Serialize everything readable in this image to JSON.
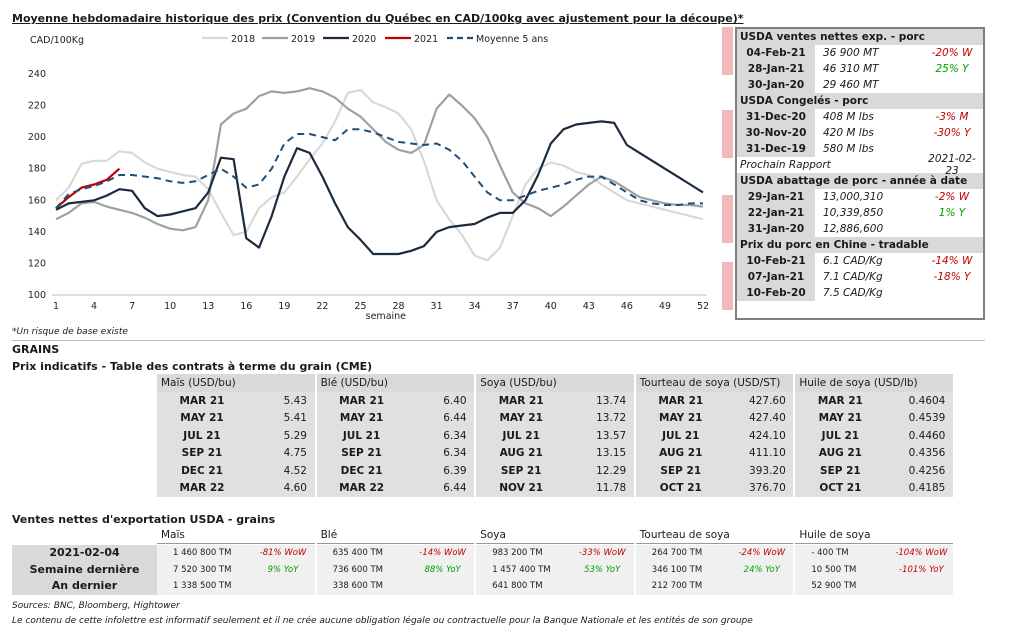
{
  "chart_title": "Moyenne hebdomadaire historique des prix (Convention du Québec en CAD/100kg avec ajustement pour la découpe)*",
  "chart_note": "*Un risque de base existe",
  "colors": {
    "y2018": "#d9d9d9",
    "y2019": "#a0a0a0",
    "y2020": "#1a2b40",
    "y2021": "#c00000",
    "avg5": "#1f4e79",
    "pink": "#f2b9bc"
  },
  "chart_data": {
    "type": "line",
    "ylabel": "CAD/100Kg",
    "xlabel": "semaine",
    "ylim": [
      100,
      240
    ],
    "yticks": [
      100,
      120,
      140,
      160,
      180,
      200,
      220,
      240
    ],
    "xticks": [
      1,
      4,
      7,
      10,
      13,
      16,
      19,
      22,
      25,
      28,
      31,
      34,
      37,
      40,
      43,
      46,
      49,
      52
    ],
    "grid": false,
    "legend": "top",
    "series": [
      {
        "name": "2018",
        "color": "#d9d9d9",
        "dash": false,
        "values": [
          160,
          168,
          183,
          185,
          185,
          191,
          190,
          184,
          180,
          178,
          176,
          175,
          167,
          152,
          138,
          140,
          155,
          162,
          165,
          175,
          186,
          196,
          210,
          228,
          230,
          222,
          219,
          215,
          205,
          185,
          160,
          148,
          138,
          125,
          122,
          130,
          150,
          170,
          180,
          184,
          182,
          178,
          176,
          170,
          165,
          160,
          158,
          156,
          154,
          152,
          150,
          148
        ]
      },
      {
        "name": "2019",
        "color": "#a0a0a0",
        "dash": false,
        "values": [
          148,
          152,
          158,
          159,
          156,
          154,
          152,
          149,
          145,
          142,
          141,
          143,
          160,
          208,
          215,
          218,
          226,
          229,
          228,
          229,
          231,
          229,
          225,
          218,
          213,
          205,
          197,
          192,
          190,
          195,
          218,
          227,
          220,
          212,
          200,
          182,
          165,
          158,
          155,
          150,
          156,
          163,
          170,
          175,
          172,
          167,
          162,
          160,
          158,
          157,
          157,
          156
        ]
      },
      {
        "name": "2020",
        "color": "#1a2b40",
        "dash": false,
        "values": [
          154,
          158,
          159,
          160,
          163,
          167,
          166,
          155,
          150,
          151,
          153,
          155,
          165,
          187,
          186,
          136,
          130,
          150,
          175,
          193,
          190,
          175,
          158,
          143,
          135,
          126,
          126,
          126,
          128,
          131,
          140,
          143,
          144,
          145,
          149,
          152,
          152,
          160,
          176,
          196,
          205,
          208,
          209,
          210,
          209,
          195,
          190,
          185,
          180,
          175,
          170,
          165
        ]
      },
      {
        "name": "2021",
        "color": "#c00000",
        "dash": false,
        "values": [
          155,
          162,
          168,
          170,
          173,
          180
        ]
      },
      {
        "name": "Moyenne 5 ans",
        "color": "#1f4e79",
        "dash": true,
        "values": [
          155,
          164,
          167,
          169,
          172,
          176,
          176,
          175,
          174,
          172,
          171,
          172,
          176,
          180,
          175,
          168,
          170,
          180,
          196,
          202,
          202,
          200,
          198,
          205,
          205,
          203,
          200,
          197,
          196,
          195,
          196,
          192,
          185,
          175,
          165,
          160,
          160,
          163,
          166,
          168,
          170,
          173,
          175,
          175,
          170,
          165,
          160,
          158,
          157,
          157,
          158,
          158
        ]
      }
    ]
  },
  "usda_box": {
    "sections": [
      {
        "title": "USDA ventes nettes exp. - porc",
        "rows": [
          {
            "date": "04-Feb-21",
            "value": "36 900  MT",
            "change": "-20% W",
            "tone": "red"
          },
          {
            "date": "28-Jan-21",
            "value": "46 310  MT",
            "change": "25% Y",
            "tone": "green"
          },
          {
            "date": "30-Jan-20",
            "value": "29 460  MT",
            "change": "",
            "tone": ""
          }
        ]
      },
      {
        "title": "USDA Congelés - porc",
        "rows": [
          {
            "date": "31-Dec-20",
            "value": "408 M lbs",
            "change": "-3% M",
            "tone": "red"
          },
          {
            "date": "30-Nov-20",
            "value": "420 M lbs",
            "change": "-30% Y",
            "tone": "red"
          },
          {
            "date": "31-Dec-19",
            "value": "580 M lbs",
            "change": "",
            "tone": ""
          }
        ],
        "prochain": {
          "label": "Prochain Rapport",
          "date": "2021-02-23"
        }
      },
      {
        "title": "USDA abattage de porc - année à date",
        "rows": [
          {
            "date": "29-Jan-21",
            "value": "13,000,310",
            "change": "-2% W",
            "tone": "red"
          },
          {
            "date": "22-Jan-21",
            "value": "10,339,850",
            "change": "1% Y",
            "tone": "green"
          },
          {
            "date": "31-Jan-20",
            "value": "12,886,600",
            "change": "",
            "tone": ""
          }
        ]
      },
      {
        "title": "Prix du porc en Chine - tradable",
        "rows": [
          {
            "date": "10-Feb-21",
            "value": "6.1 CAD/Kg",
            "change": "-14% W",
            "tone": "red"
          },
          {
            "date": "07-Jan-21",
            "value": "7.1 CAD/Kg",
            "change": "-18% Y",
            "tone": "red"
          },
          {
            "date": "10-Feb-20",
            "value": "7.5 CAD/Kg",
            "change": "",
            "tone": ""
          }
        ]
      }
    ]
  },
  "grains": {
    "section_title": "GRAINS",
    "subtitle": "Prix indicatifs - Table des contrats à terme du grain (CME)",
    "columns": [
      {
        "name": "Maïs (USD/bu)",
        "rows": [
          [
            "MAR 21",
            "5.43"
          ],
          [
            "MAY 21",
            "5.41"
          ],
          [
            "JUL 21",
            "5.29"
          ],
          [
            "SEP 21",
            "4.75"
          ],
          [
            "DEC 21",
            "4.52"
          ],
          [
            "MAR 22",
            "4.60"
          ]
        ]
      },
      {
        "name": "Blé (USD/bu)",
        "rows": [
          [
            "MAR 21",
            "6.40"
          ],
          [
            "MAY 21",
            "6.44"
          ],
          [
            "JUL 21",
            "6.34"
          ],
          [
            "SEP 21",
            "6.34"
          ],
          [
            "DEC 21",
            "6.39"
          ],
          [
            "MAR 22",
            "6.44"
          ]
        ]
      },
      {
        "name": "Soya (USD/bu)",
        "rows": [
          [
            "MAR 21",
            "13.74"
          ],
          [
            "MAY 21",
            "13.72"
          ],
          [
            "JUL 21",
            "13.57"
          ],
          [
            "AUG 21",
            "13.15"
          ],
          [
            "SEP 21",
            "12.29"
          ],
          [
            "NOV 21",
            "11.78"
          ]
        ]
      },
      {
        "name": "Tourteau de soya (USD/ST)",
        "rows": [
          [
            "MAR 21",
            "427.60"
          ],
          [
            "MAY 21",
            "427.40"
          ],
          [
            "JUL 21",
            "424.10"
          ],
          [
            "AUG 21",
            "411.10"
          ],
          [
            "SEP 21",
            "393.20"
          ],
          [
            "OCT 21",
            "376.70"
          ]
        ]
      },
      {
        "name": "Huile de soya (USD/lb)",
        "rows": [
          [
            "MAR 21",
            "0.4604"
          ],
          [
            "MAY 21",
            "0.4539"
          ],
          [
            "JUL 21",
            "0.4460"
          ],
          [
            "AUG 21",
            "0.4356"
          ],
          [
            "SEP 21",
            "0.4256"
          ],
          [
            "OCT 21",
            "0.4185"
          ]
        ]
      }
    ]
  },
  "exports": {
    "title": "Ventes nettes d'exportation USDA - grains",
    "columns": [
      "Maïs",
      "Blé",
      "Soya",
      "Tourteau de soya",
      "Huile de soya"
    ],
    "rows": [
      {
        "label": "2021-02-04",
        "cells": [
          [
            "1 460 800 TM",
            "-81% WoW",
            "red"
          ],
          [
            "635 400 TM",
            "-14% WoW",
            "red"
          ],
          [
            "983 200 TM",
            "-33% WoW",
            "red"
          ],
          [
            "264 700 TM",
            "-24% WoW",
            "red"
          ],
          [
            "-  400 TM",
            "-104% WoW",
            "red"
          ]
        ]
      },
      {
        "label": "Semaine dernière",
        "cells": [
          [
            "7 520 300 TM",
            "9% YoY",
            "green"
          ],
          [
            "736 600 TM",
            "88% YoY",
            "green"
          ],
          [
            "1 457 400 TM",
            "53% YoY",
            "green"
          ],
          [
            "346 100 TM",
            "24% YoY",
            "green"
          ],
          [
            "10 500 TM",
            "-101% YoY",
            "red"
          ]
        ]
      },
      {
        "label": "An dernier",
        "cells": [
          [
            "1 338 500 TM",
            "",
            ""
          ],
          [
            "338 600 TM",
            "",
            ""
          ],
          [
            "641 800 TM",
            "",
            ""
          ],
          [
            "212 700 TM",
            "",
            ""
          ],
          [
            "52 900 TM",
            "",
            ""
          ]
        ]
      }
    ]
  },
  "footer": {
    "sources": "Sources: BNC, Bloomberg, Hightower",
    "disclaimer": "Le contenu de cette infolettre est informatif seulement et il ne crée aucune obligation légale ou contractuelle pour la Banque Nationale et les entités de son groupe"
  }
}
